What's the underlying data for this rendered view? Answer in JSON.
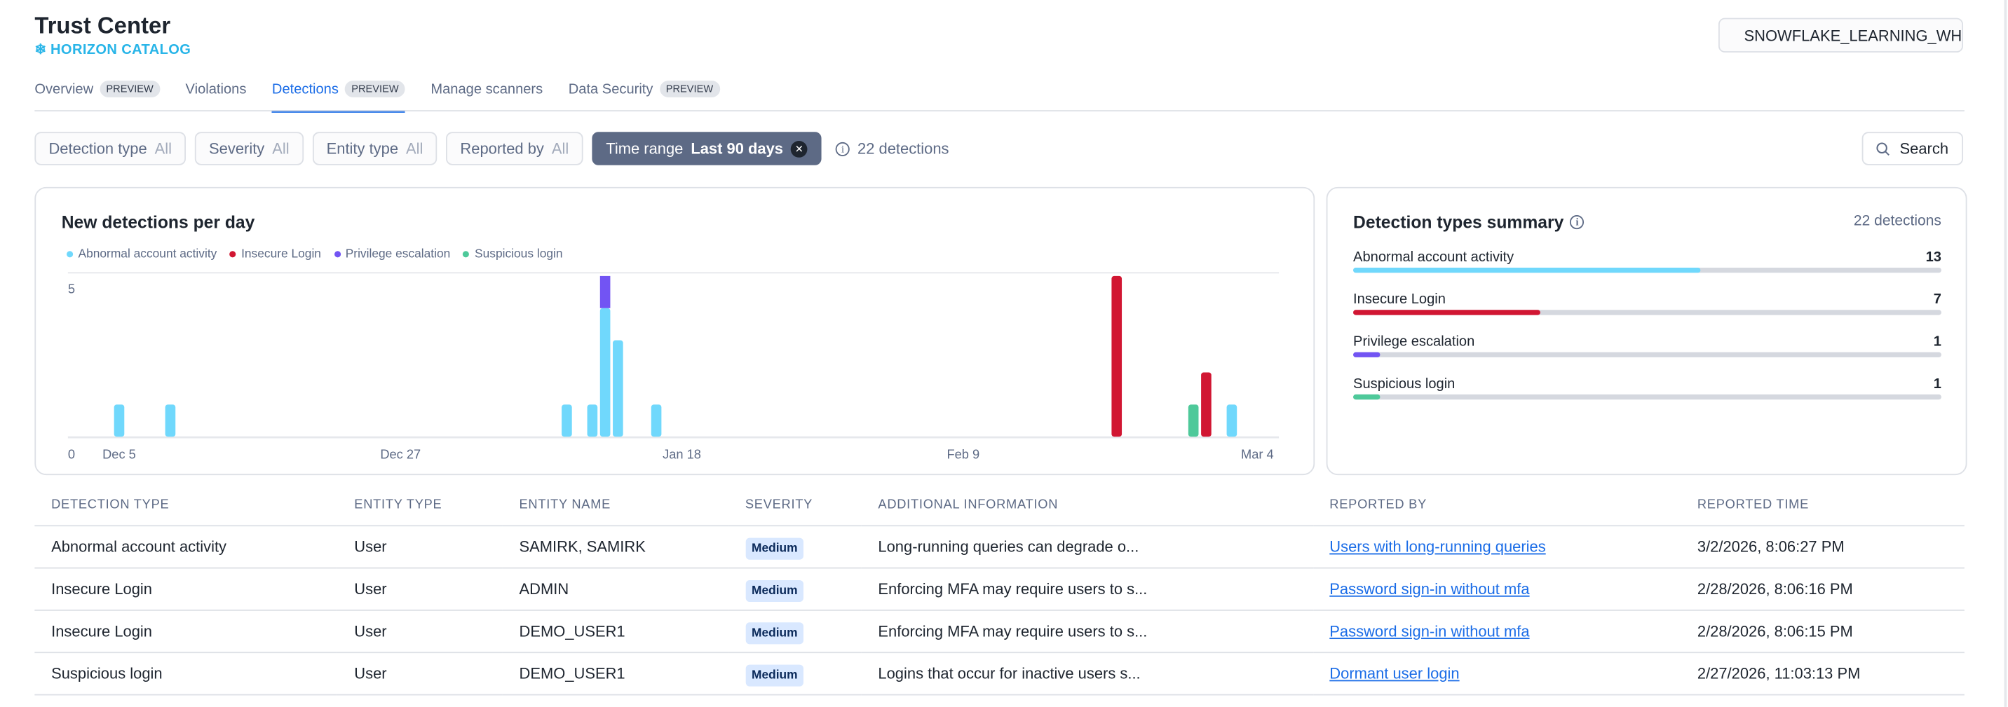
{
  "header": {
    "title": "Trust Center",
    "brand": "HORIZON CATALOG",
    "warehouse": "SNOWFLAKE_LEARNING_WH"
  },
  "tabs": [
    {
      "label": "Overview",
      "badge": "PREVIEW"
    },
    {
      "label": "Violations"
    },
    {
      "label": "Detections",
      "badge": "PREVIEW",
      "active": true
    },
    {
      "label": "Manage scanners"
    },
    {
      "label": "Data Security",
      "badge": "PREVIEW"
    }
  ],
  "filters": [
    {
      "label": "Detection type",
      "value": "All"
    },
    {
      "label": "Severity",
      "value": "All"
    },
    {
      "label": "Entity type",
      "value": "All"
    },
    {
      "label": "Reported by",
      "value": "All"
    },
    {
      "label": "Time range",
      "value": "Last 90 days",
      "active": true
    }
  ],
  "detections_count": "22 detections",
  "search_label": "Search",
  "colors": {
    "Abnormal account activity": "#70d8fc",
    "Insecure Login": "#d11632",
    "Privilege escalation": "#7254f3",
    "Suspicious login": "#4ec99a",
    "accent": "#1a6ce7"
  },
  "chart_data": {
    "type": "bar",
    "stacked": true,
    "title": "New detections per day",
    "x_ticks": [
      {
        "date": "2025-12-05",
        "label": "Dec 5"
      },
      {
        "date": "2025-12-27",
        "label": "Dec 27"
      },
      {
        "date": "2026-01-18",
        "label": "Jan 18"
      },
      {
        "date": "2026-02-09",
        "label": "Feb 9"
      },
      {
        "date": "2026-03-04",
        "label": "Mar 4"
      }
    ],
    "y_ticks": [
      "0",
      "5"
    ],
    "xlim": [
      "2025-12-05",
      "2026-03-04"
    ],
    "ylim": [
      0,
      5.1
    ],
    "legend_position": "top-left",
    "series": [
      {
        "name": "Abnormal account activity",
        "color": "#70d8fc",
        "points": [
          [
            "2025-12-05",
            1
          ],
          [
            "2025-12-09",
            1
          ],
          [
            "2026-01-09",
            1
          ],
          [
            "2026-01-11",
            1
          ],
          [
            "2026-01-12",
            4
          ],
          [
            "2026-01-13",
            3
          ],
          [
            "2026-01-16",
            1
          ],
          [
            "2026-03-02",
            1
          ]
        ]
      },
      {
        "name": "Insecure Login",
        "color": "#d11632",
        "points": [
          [
            "2026-02-21",
            5
          ],
          [
            "2026-02-28",
            2
          ]
        ]
      },
      {
        "name": "Privilege escalation",
        "color": "#7254f3",
        "points": [
          [
            "2026-01-12",
            1
          ]
        ]
      },
      {
        "name": "Suspicious login",
        "color": "#4ec99a",
        "points": [
          [
            "2026-02-27",
            1
          ]
        ]
      }
    ]
  },
  "summary": {
    "title": "Detection types summary",
    "total": "22 detections",
    "total_value": 22,
    "items": [
      {
        "label": "Abnormal account activity",
        "count": "13",
        "value": 13,
        "color": "#70d8fc"
      },
      {
        "label": "Insecure Login",
        "count": "7",
        "value": 7,
        "color": "#d11632"
      },
      {
        "label": "Privilege escalation",
        "count": "1",
        "value": 1,
        "color": "#7254f3"
      },
      {
        "label": "Suspicious login",
        "count": "1",
        "value": 1,
        "color": "#4ec99a"
      }
    ]
  },
  "table": {
    "columns": [
      "DETECTION TYPE",
      "ENTITY TYPE",
      "ENTITY NAME",
      "SEVERITY",
      "ADDITIONAL INFORMATION",
      "REPORTED BY",
      "REPORTED TIME"
    ],
    "rows": [
      [
        "Abnormal account activity",
        "User",
        "SAMIRK, SAMIRK",
        "Medium",
        "Long-running queries can degrade o...",
        "Users with long-running queries",
        "3/2/2026, 8:06:27 PM"
      ],
      [
        "Insecure Login",
        "User",
        "ADMIN",
        "Medium",
        "Enforcing MFA may require users to s...",
        "Password sign-in without mfa",
        "2/28/2026, 8:06:16 PM"
      ],
      [
        "Insecure Login",
        "User",
        "DEMO_USER1",
        "Medium",
        "Enforcing MFA may require users to s...",
        "Password sign-in without mfa",
        "2/28/2026, 8:06:15 PM"
      ],
      [
        "Suspicious login",
        "User",
        "DEMO_USER1",
        "Medium",
        "Logins that occur for inactive users s...",
        "Dormant user login",
        "2/27/2026, 11:03:13 PM"
      ]
    ]
  }
}
